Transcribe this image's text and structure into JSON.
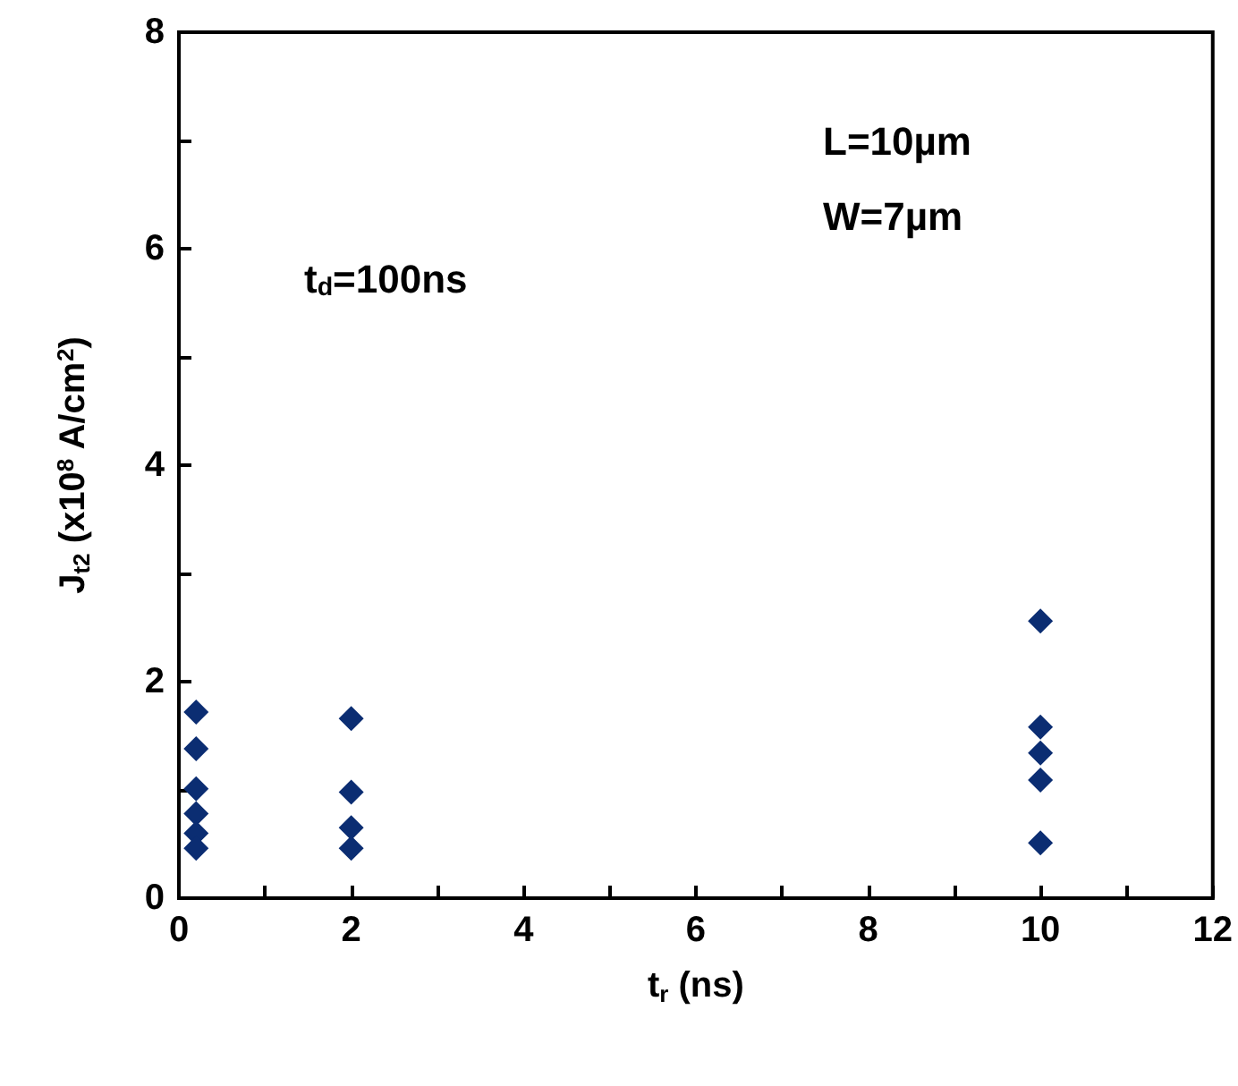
{
  "chart_data": {
    "type": "scatter",
    "xlabel": "t$_{r}$ (ns)",
    "ylabel": "J$_{t2}$ (x10$^{8}$ A/cm$^{2}$)",
    "annotations": [
      "t$_{d}$=100ns",
      "L=10µm",
      "W=7µm"
    ],
    "series": [
      {
        "color": "#0b2d72",
        "x": [
          0.2,
          0.2,
          0.2,
          0.2,
          0.2,
          0.2,
          2,
          2,
          2,
          2,
          10,
          10,
          10,
          10,
          10
        ],
        "values": [
          1.72,
          1.38,
          1.01,
          0.78,
          0.6,
          0.46,
          1.66,
          0.98,
          0.65,
          0.46,
          2.56,
          1.58,
          1.34,
          1.09,
          0.51
        ]
      }
    ],
    "xlim": [
      0,
      12
    ],
    "xticks": [
      0,
      {
        "value": 1,
        "label": null
      },
      2,
      {
        "value": 3,
        "label": null
      },
      4,
      {
        "value": 5,
        "label": null
      },
      6,
      {
        "value": 7,
        "label": null
      },
      8,
      {
        "value": 9,
        "label": null
      },
      10,
      {
        "value": 11,
        "label": null
      },
      12
    ],
    "ylim": [
      0,
      8
    ],
    "yticks": [
      0,
      {
        "value": 1,
        "label": null
      },
      2,
      {
        "value": 3,
        "label": null
      },
      4,
      {
        "value": 5,
        "label": null
      },
      6,
      {
        "value": 7,
        "label": null
      },
      8
    ],
    "marker": "diamond",
    "grid": false
  }
}
